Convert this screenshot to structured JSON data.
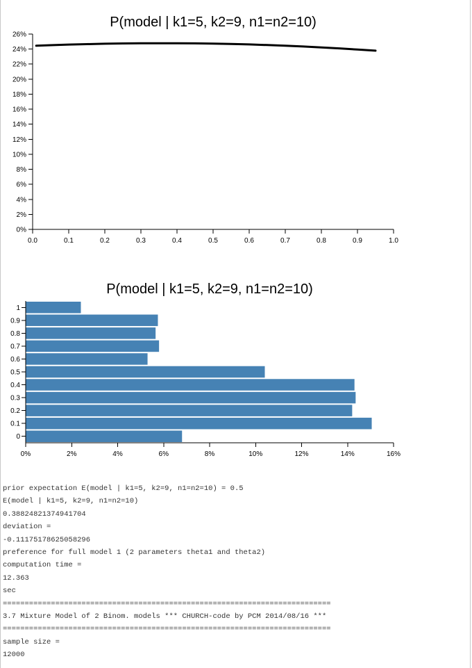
{
  "colors": {
    "line": "#000000",
    "bar": "#4682b4",
    "axis": "#000000",
    "text": "#333333"
  },
  "chart_data": [
    {
      "type": "line",
      "title": "P(model | k1=5, k2=9, n1=n2=10)",
      "xlabel": "",
      "ylabel": "",
      "xlim": [
        0,
        1
      ],
      "ylim": [
        0,
        0.26
      ],
      "x_ticks": [
        0.0,
        0.1,
        0.2,
        0.3,
        0.4,
        0.5,
        0.6,
        0.7,
        0.8,
        0.9,
        1.0
      ],
      "x_tick_labels": [
        "0.0",
        "0.1",
        "0.2",
        "0.3",
        "0.4",
        "0.5",
        "0.6",
        "0.7",
        "0.8",
        "0.9",
        "1.0"
      ],
      "y_ticks": [
        0,
        0.02,
        0.04,
        0.06,
        0.08,
        0.1,
        0.12,
        0.14,
        0.16,
        0.18,
        0.2,
        0.22,
        0.24,
        0.26
      ],
      "y_tick_labels": [
        "0%",
        "2%",
        "4%",
        "6%",
        "8%",
        "10%",
        "12%",
        "14%",
        "16%",
        "18%",
        "20%",
        "22%",
        "24%",
        "26%"
      ],
      "series": [
        {
          "x": [
            0.01,
            0.05,
            0.1,
            0.15,
            0.2,
            0.25,
            0.3,
            0.35,
            0.4,
            0.45,
            0.5,
            0.55,
            0.6,
            0.65,
            0.7,
            0.75,
            0.8,
            0.85,
            0.9,
            0.95
          ],
          "y": [
            0.2445,
            0.2452,
            0.246,
            0.2466,
            0.2471,
            0.2475,
            0.2477,
            0.2478,
            0.2478,
            0.2476,
            0.2473,
            0.2468,
            0.2462,
            0.2454,
            0.2445,
            0.2434,
            0.2422,
            0.2409,
            0.2394,
            0.2379
          ]
        }
      ],
      "grid": false,
      "legend": "none"
    },
    {
      "type": "bar",
      "orientation": "horizontal",
      "title": "P(model | k1=5, k2=9, n1=n2=10)",
      "xlabel": "",
      "ylabel": "",
      "categories": [
        "0",
        "0.1",
        "0.2",
        "0.3",
        "0.4",
        "0.5",
        "0.6",
        "0.7",
        "0.8",
        "0.9",
        "1"
      ],
      "values": [
        0.068,
        0.1505,
        0.142,
        0.1435,
        0.143,
        0.104,
        0.053,
        0.058,
        0.0565,
        0.0575,
        0.024
      ],
      "xlim": [
        0,
        0.16
      ],
      "x_ticks": [
        0,
        0.02,
        0.04,
        0.06,
        0.08,
        0.1,
        0.12,
        0.14,
        0.16
      ],
      "x_tick_labels": [
        "0%",
        "2%",
        "4%",
        "6%",
        "8%",
        "10%",
        "12%",
        "14%",
        "16%"
      ],
      "grid": false,
      "legend": "none"
    }
  ],
  "console": [
    "prior expectation E(model | k1=5, k2=9, n1=n2=10) = 0.5",
    "E(model | k1=5, k2=9, n1=n2=10)",
    "0.38824821374941704",
    "deviation =",
    "-0.11175178625058296",
    "preference for full model 1 (2 parameters theta1 and theta2)",
    "computation time =",
    "12.363",
    "sec",
    "===========================================================================",
    "3.7 Mixture Model of 2 Binom. models *** CHURCH-code by PCM 2014/08/16 ***",
    "===========================================================================",
    "sample size =",
    "12000"
  ]
}
